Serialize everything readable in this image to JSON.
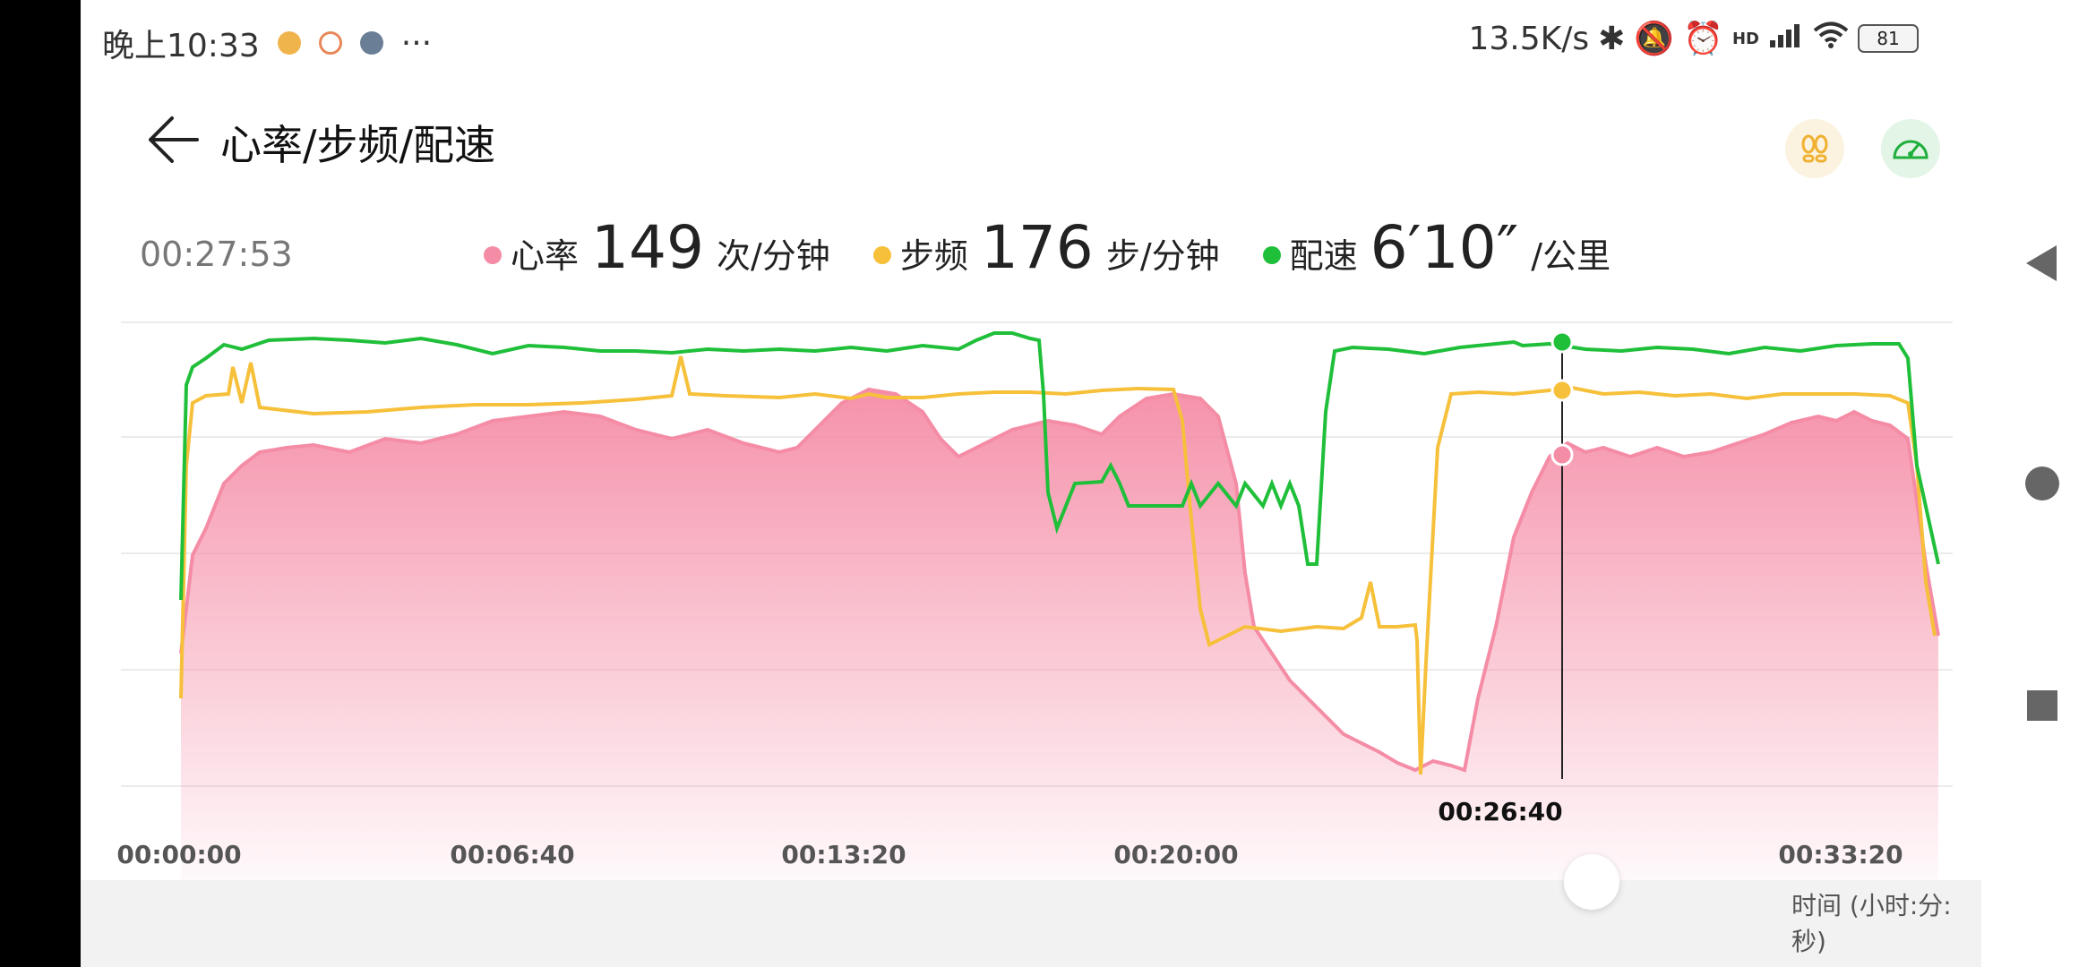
{
  "status_bar": {
    "time": "晚上10:33",
    "more": "···",
    "net_speed": "13.5K/s",
    "hd": "HD",
    "battery": "81"
  },
  "header": {
    "title": "心率/步频/配速"
  },
  "summary": {
    "timestamp": "00:27:53",
    "heart_rate": {
      "label": "心率",
      "value": "149",
      "unit": "次/分钟",
      "color": "#f58ca6"
    },
    "cadence": {
      "label": "步频",
      "value": "176",
      "unit": "步/分钟",
      "color": "#f6c03a"
    },
    "pace": {
      "label": "配速",
      "value": "6′10″",
      "unit": "/公里",
      "color": "#1fbf3a"
    }
  },
  "chart_data": {
    "type": "line",
    "x_ticks": [
      "00:00:00",
      "00:06:40",
      "00:13:20",
      "00:20:00",
      "00:33:20"
    ],
    "cursor_time": "00:26:40",
    "x_axis_unit": "时间 (小时:分:秒)",
    "series": [
      {
        "name": "心率",
        "color": "#f58ca6"
      },
      {
        "name": "步频",
        "color": "#f6c03a"
      },
      {
        "name": "配速",
        "color": "#1fbf3a"
      }
    ]
  }
}
